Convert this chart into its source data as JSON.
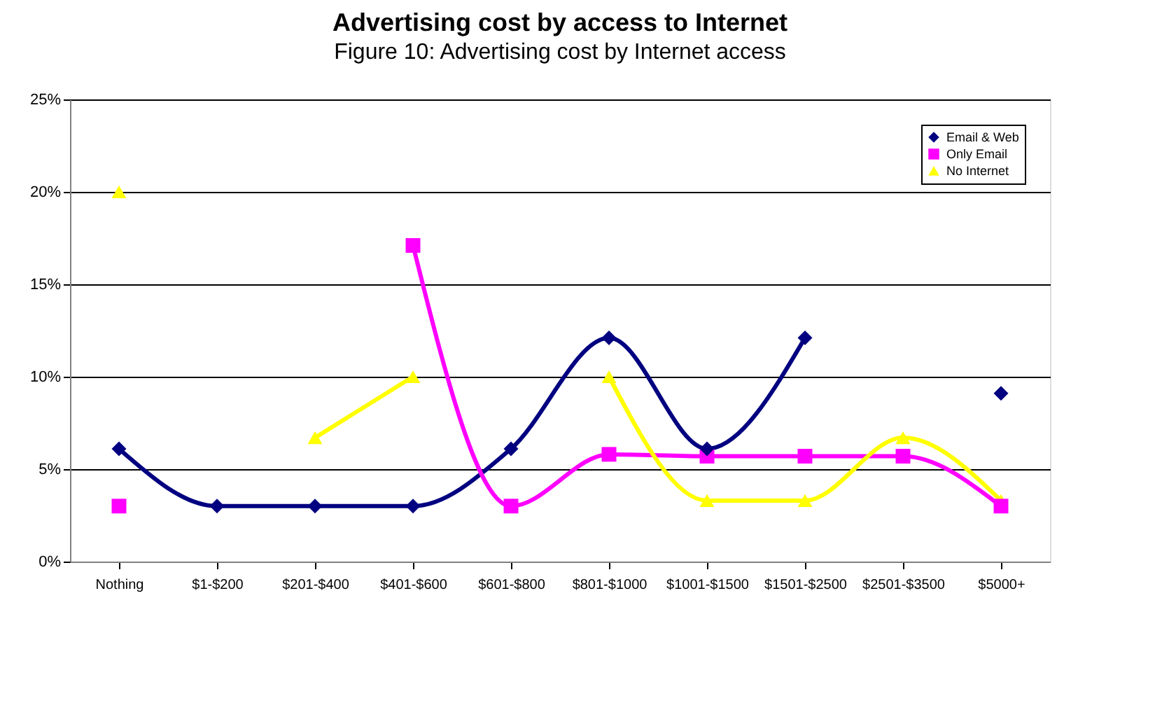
{
  "chart_data": {
    "type": "line",
    "title": "Advertising cost by access to Internet",
    "annotations": [
      "Figure 10: Advertising cost by Internet access"
    ],
    "categories": [
      "Nothing",
      "$1-$200",
      "$201-$400",
      "$401-$600",
      "$601-$800",
      "$801-$1000",
      "$1001-$1500",
      "$1501-$2500",
      "$2501-$3500",
      "$5000+"
    ],
    "series": [
      {
        "name": "Email & Web",
        "color": "#000080",
        "marker": "diamond",
        "values": [
          6.1,
          3,
          3,
          3,
          6.1,
          12.1,
          6.1,
          12.1,
          null,
          9.1
        ]
      },
      {
        "name": "Only Email",
        "color": "#ff00ff",
        "marker": "square",
        "values": [
          3,
          null,
          null,
          17.1,
          3,
          5.8,
          5.7,
          5.7,
          5.7,
          3
        ]
      },
      {
        "name": "No Internet",
        "color": "#ffff00",
        "marker": "triangle",
        "values": [
          20,
          null,
          6.7,
          10,
          null,
          10,
          3.3,
          3.3,
          6.7,
          3.3
        ]
      }
    ],
    "ylim": [
      0,
      25
    ],
    "yticks": [
      {
        "value": 0,
        "label": "0%"
      },
      {
        "value": 5,
        "label": "5%"
      },
      {
        "value": 10,
        "label": "10%"
      },
      {
        "value": 15,
        "label": "15%"
      },
      {
        "value": 20,
        "label": "20%"
      },
      {
        "value": 25,
        "label": "25%"
      }
    ],
    "grid": "y",
    "legend": "top right"
  }
}
